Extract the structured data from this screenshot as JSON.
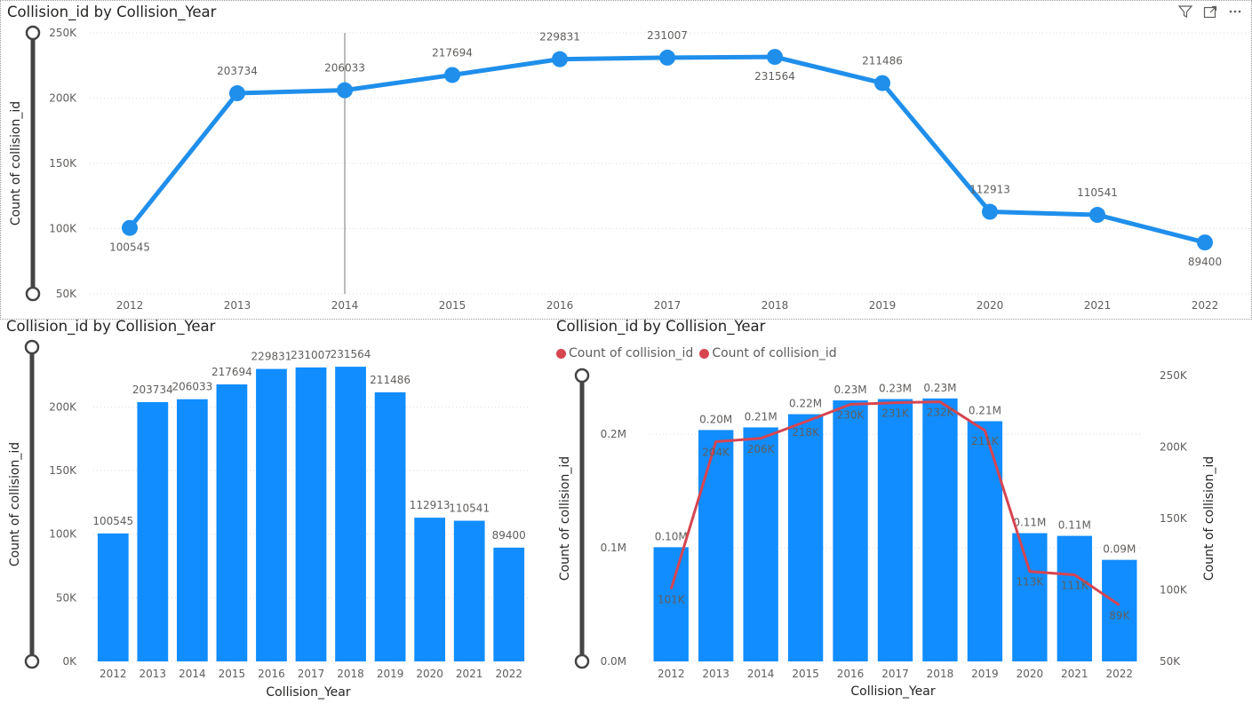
{
  "chart_data": [
    {
      "type": "line",
      "title": "Collision_id by Collision_Year",
      "xlabel": "",
      "ylabel": "Count of collision_id",
      "categories": [
        "2012",
        "2013",
        "2014",
        "2015",
        "2016",
        "2017",
        "2018",
        "2019",
        "2020",
        "2021",
        "2022"
      ],
      "values": [
        100545,
        203734,
        206033,
        217694,
        229831,
        231007,
        231564,
        211486,
        112913,
        110541,
        89400
      ],
      "ylim": [
        50000,
        250000
      ],
      "yticks": [
        "50K",
        "100K",
        "150K",
        "200K",
        "250K"
      ],
      "color": "#1F8FEB",
      "grid": true
    },
    {
      "type": "bar",
      "title": "Collision_id by Collision_Year",
      "xlabel": "Collision_Year",
      "ylabel": "Count of collision_id",
      "categories": [
        "2012",
        "2013",
        "2014",
        "2015",
        "2016",
        "2017",
        "2018",
        "2019",
        "2020",
        "2021",
        "2022"
      ],
      "values": [
        100545,
        203734,
        206033,
        217694,
        229831,
        231007,
        231564,
        211486,
        112913,
        110541,
        89400
      ],
      "ylim": [
        0,
        240000
      ],
      "yticks": [
        "0K",
        "50K",
        "100K",
        "150K",
        "200K"
      ],
      "color": "#118DFF",
      "grid": true
    },
    {
      "type": "bar",
      "title": "Collision_id by Collision_Year",
      "xlabel": "Collision_Year",
      "ylabel": "Count of collision_id",
      "y2label": "Count of collision_id",
      "legend": [
        "Count of collision_id",
        "Count of collision_id"
      ],
      "legend_colors": [
        "#D64550",
        "#D64550"
      ],
      "categories": [
        "2012",
        "2013",
        "2014",
        "2015",
        "2016",
        "2017",
        "2018",
        "2019",
        "2020",
        "2021",
        "2022"
      ],
      "series": [
        {
          "name": "Count of collision_id",
          "kind": "bar",
          "axis": "left",
          "values": [
            100545,
            203734,
            206033,
            217694,
            229831,
            231007,
            231564,
            211486,
            112913,
            110541,
            89400
          ],
          "labels": [
            "0.10M",
            "0.20M",
            "0.21M",
            "0.22M",
            "0.23M",
            "0.23M",
            "0.23M",
            "0.21M",
            "0.11M",
            "0.11M",
            "0.09M"
          ]
        },
        {
          "name": "Count of collision_id",
          "kind": "line",
          "axis": "right",
          "values": [
            100545,
            203734,
            206033,
            217694,
            229831,
            231007,
            231564,
            211486,
            112913,
            110541,
            89400
          ],
          "labels": [
            "101K",
            "204K",
            "206K",
            "218K",
            "230K",
            "231K",
            "232K",
            "211K",
            "113K",
            "111K",
            "89K"
          ]
        }
      ],
      "ylim": [
        0,
        240000
      ],
      "yticks": [
        "0.0M",
        "0.1M",
        "0.2M"
      ],
      "y2lim": [
        50000,
        250000
      ],
      "y2ticks": [
        "50K",
        "100K",
        "150K",
        "200K",
        "250K"
      ],
      "bar_color": "#118DFF",
      "line_color": "#D64550"
    }
  ]
}
